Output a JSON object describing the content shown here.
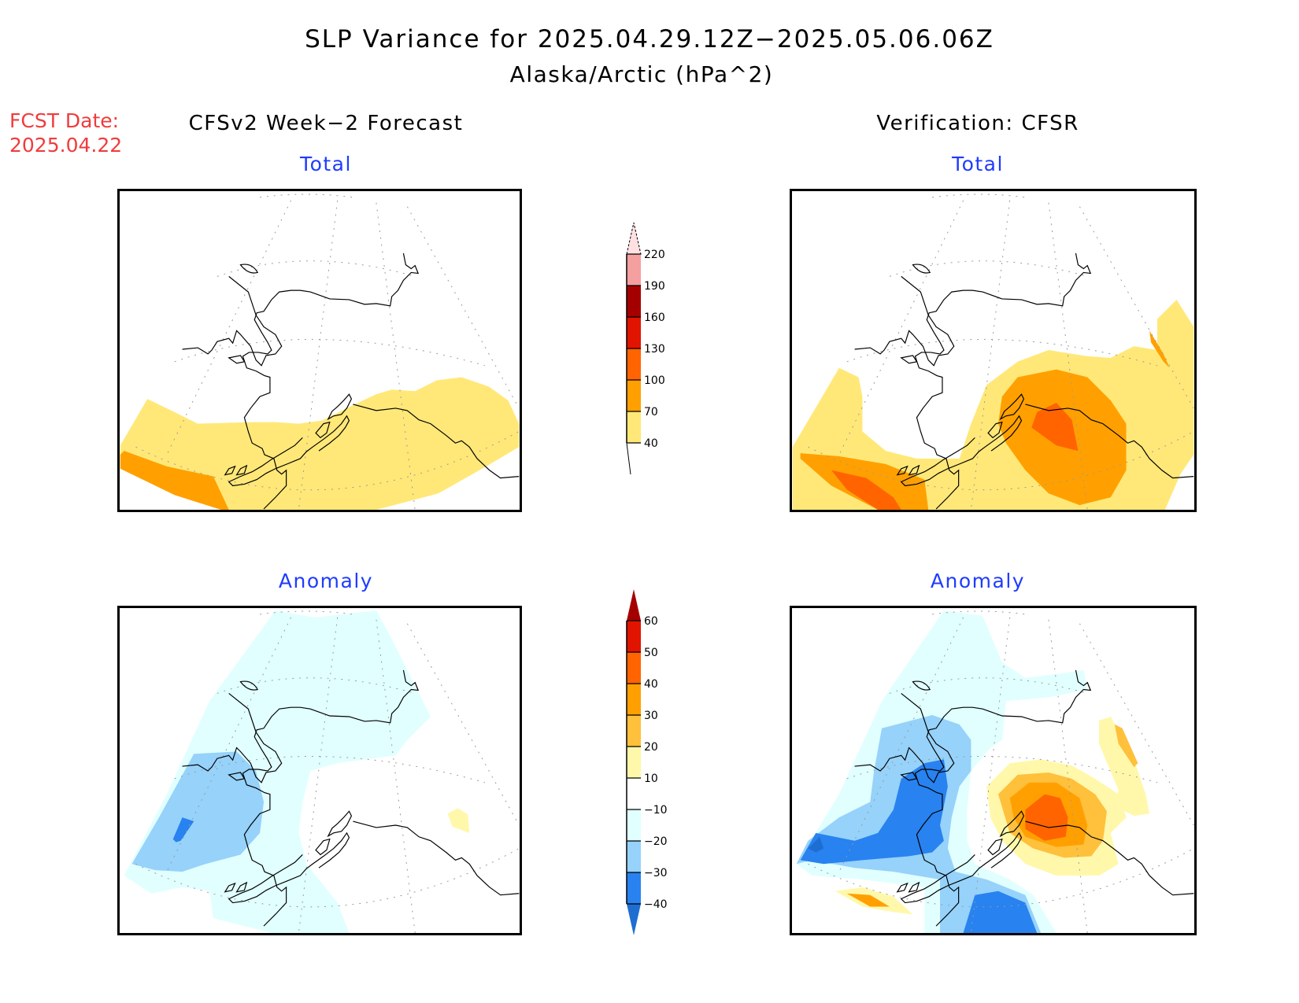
{
  "header": {
    "title": "SLP Variance for 2025.04.29.12Z−2025.05.06.06Z",
    "subtitle": "Alaska/Arctic (hPa^2)",
    "fcst_date_label": "FCST Date:",
    "fcst_date_value": "2025.04.22"
  },
  "columns": {
    "left": "CFSv2 Week−2 Forecast",
    "right": "Verification: CFSR"
  },
  "panels": {
    "top_left": {
      "title": "Total"
    },
    "top_right": {
      "title": "Total"
    },
    "bottom_left": {
      "title": "Anomaly"
    },
    "bottom_right": {
      "title": "Anomaly"
    }
  },
  "legends": {
    "total": {
      "levels": [
        "40",
        "70",
        "100",
        "130",
        "160",
        "190",
        "220"
      ],
      "colors": [
        "#ffe878",
        "#ffa000",
        "#ff6400",
        "#e11400",
        "#a50000",
        "#f5a0a0",
        "#ffe1e1"
      ],
      "open_ends": "top-arrow-pale, bottom-arrow-white"
    },
    "anomaly": {
      "levels": [
        "−40",
        "−30",
        "−20",
        "−10",
        "10",
        "20",
        "30",
        "40",
        "50",
        "60"
      ],
      "colors": [
        "#1e6ed2",
        "#2882f0",
        "#96d2fa",
        "#e1ffff",
        "#ffffff",
        "#fff8ab",
        "#ffc03c",
        "#ffa000",
        "#ff6400",
        "#e11400",
        "#a50000"
      ]
    }
  },
  "chart_data": [
    {
      "type": "heatmap",
      "title": "CFSv2 Week-2 Forecast — Total",
      "units": "hPa^2",
      "region": "Alaska/Arctic",
      "contour_levels": [
        40,
        70,
        100,
        130,
        160,
        190,
        220
      ],
      "features": [
        {
          "area": "Gulf of Alaska / North Pacific south of Alaska",
          "range": "40-70"
        },
        {
          "area": "Bering Sea south / western Aleutians",
          "range": "40-70"
        },
        {
          "area": "far southwest corner (North Pacific)",
          "range": "70-100"
        },
        {
          "area": "Arctic / interior Alaska",
          "range": "<40"
        }
      ]
    },
    {
      "type": "heatmap",
      "title": "Verification: CFSR — Total",
      "units": "hPa^2",
      "region": "Alaska/Arctic",
      "contour_levels": [
        40,
        70,
        100,
        130,
        160,
        190,
        220
      ],
      "features": [
        {
          "area": "southern Alaska / Gulf of Alaska",
          "range": "70-100"
        },
        {
          "area": "Gulf of Alaska center",
          "range": "100-130"
        },
        {
          "area": "Yukon / western Canada and south Pacific",
          "range": "40-70"
        },
        {
          "area": "southwest Bering / North Pacific",
          "range": "70-130"
        },
        {
          "area": "Arctic / western Alaska",
          "range": "<40"
        }
      ]
    },
    {
      "type": "heatmap",
      "title": "CFSv2 Week-2 Forecast — Anomaly",
      "units": "hPa^2",
      "region": "Alaska/Arctic",
      "contour_levels": [
        -40,
        -30,
        -20,
        -10,
        10,
        20,
        30,
        40,
        50,
        60
      ],
      "features": [
        {
          "area": "Arctic / northern Alaska / Bering",
          "range": "-20 to -10"
        },
        {
          "area": "Chukotka / western Bering",
          "range": "-30 to -20"
        },
        {
          "area": "small core in western Bering",
          "range": "-40 to -30"
        },
        {
          "area": "southeast Alaska interior",
          "range": "10 to 20"
        },
        {
          "area": "southern Alaska / Gulf",
          "range": "-10 to 10"
        }
      ]
    },
    {
      "type": "heatmap",
      "title": "Verification: CFSR — Anomaly",
      "units": "hPa^2",
      "region": "Alaska/Arctic",
      "contour_levels": [
        -40,
        -30,
        -20,
        -10,
        10,
        20,
        30,
        40,
        50,
        60
      ],
      "features": [
        {
          "area": "Bering Sea / western Alaska",
          "range": "-40 to -20"
        },
        {
          "area": "North Pacific south of Aleutians",
          "range": "-40 to -20"
        },
        {
          "area": "Southcentral Alaska / Gulf",
          "range": "10 to 50"
        },
        {
          "area": "Gulf core",
          "range": "40 to 50"
        },
        {
          "area": "Canadian Arctic edge",
          "range": "10 to 30"
        },
        {
          "area": "far southwest North Pacific band",
          "range": "10 to 40"
        }
      ]
    }
  ]
}
